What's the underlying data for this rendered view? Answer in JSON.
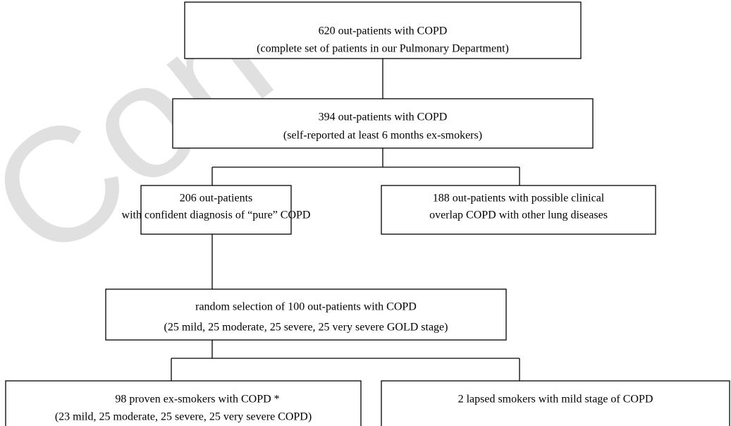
{
  "watermark": "Con",
  "nodes": [
    {
      "lines": [
        "620 out-patients with COPD",
        "(complete set of patients in our Pulmonary Department)"
      ]
    },
    {
      "lines": [
        "394 out-patients with COPD",
        "(self-reported at least 6 months ex-smokers)"
      ]
    },
    {
      "lines": [
        "206 out-patients",
        "with confident diagnosis of  “pure” COPD"
      ]
    },
    {
      "lines": [
        "188 out-patients with possible clinical",
        "overlap COPD with other lung diseases"
      ]
    },
    {
      "lines": [
        "random selection of 100 out-patients with COPD",
        "(25 mild, 25 moderate, 25 severe, 25 very severe GOLD stage)"
      ]
    },
    {
      "lines": [
        "98 proven ex-smokers with COPD *",
        "(23 mild, 25 moderate, 25 severe, 25 very severe COPD)"
      ]
    },
    {
      "lines": [
        "2 lapsed smokers with mild stage of COPD"
      ]
    }
  ]
}
